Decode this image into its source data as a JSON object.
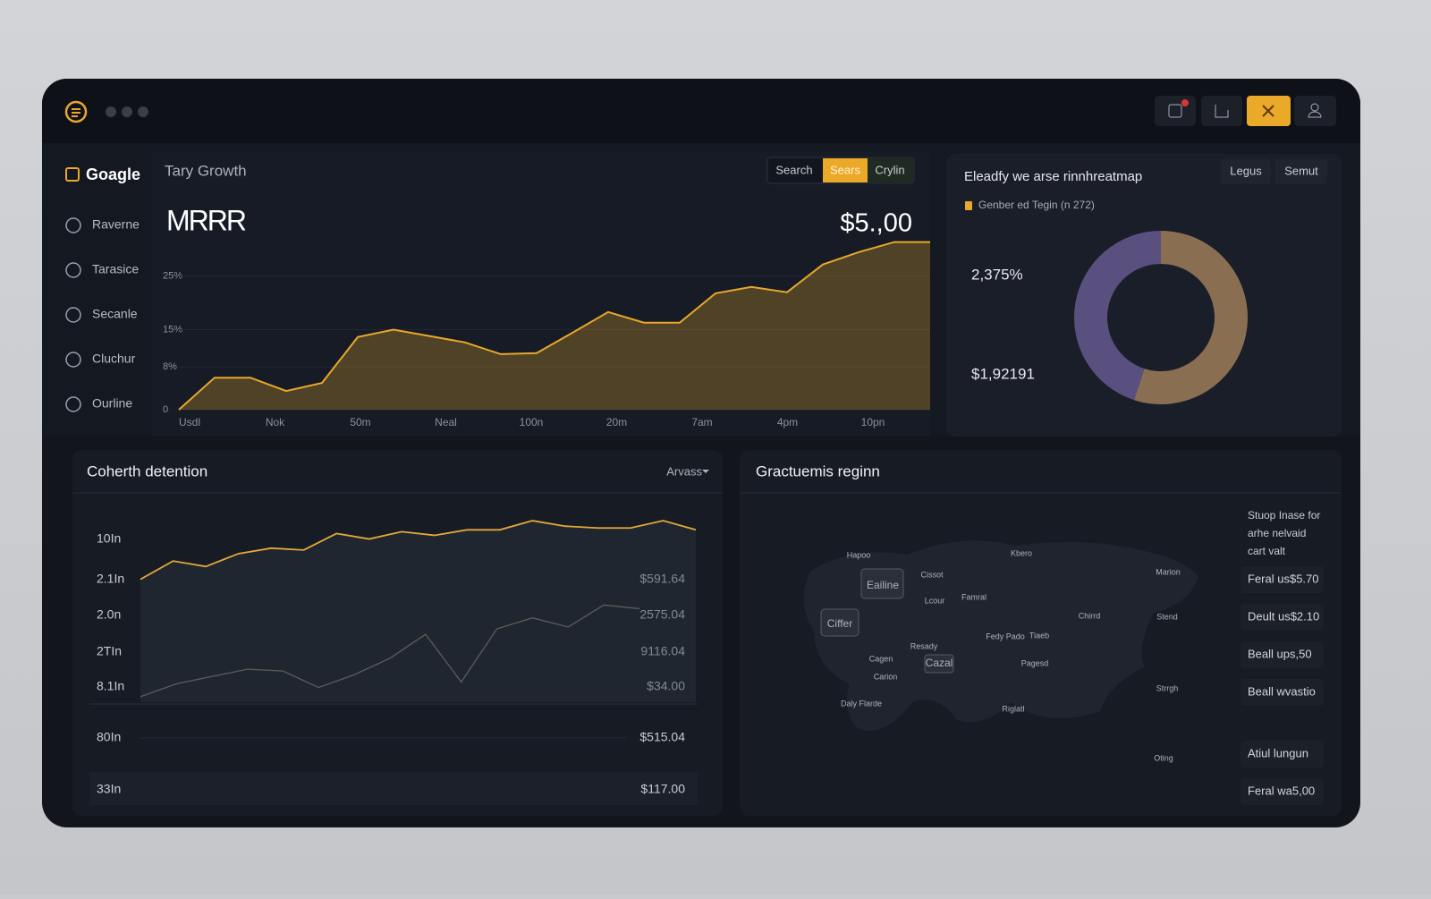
{
  "sidebar": {
    "brand": "Goagle",
    "items": [
      "Raverne",
      "Tarasice",
      "Secanle",
      "Cluchur",
      "Ourline"
    ]
  },
  "growth": {
    "title": "Tary Growth",
    "tabs": [
      "Search",
      "Sears",
      "Crylin"
    ],
    "metric": "MRRR",
    "value": "$5.,00",
    "ylim": [
      0,
      32
    ],
    "yticks": [
      0,
      {
        "value": 8,
        "label": "8%"
      },
      {
        "value": 15,
        "label": "15%"
      },
      {
        "value": 25,
        "label": "25%"
      }
    ],
    "xlabels": [
      "Usdl",
      "Nok",
      "50m",
      "Neal",
      "100n",
      "20m",
      "7am",
      "4pm",
      "10pn"
    ],
    "color": "#e9a82b",
    "values": [
      0,
      6,
      6,
      3.5,
      5,
      13.6,
      15,
      13.8,
      12.6,
      10.4,
      10.6,
      14.4,
      18.3,
      16.3,
      16.3,
      21.8,
      23,
      22,
      27.2,
      29.5,
      31.4,
      31.4
    ]
  },
  "donut": {
    "title": "Eleadfy we arse rinnhreatmap",
    "buttons": [
      "Legus",
      "Semut"
    ],
    "legend": "Genber ed Tegin (n 272)",
    "labels": [
      "2,375%",
      "$1,92191"
    ],
    "values": [
      55,
      45
    ],
    "colors": [
      "#8a6e52",
      "#5a5080"
    ]
  },
  "retention": {
    "title": "Coherth detention",
    "dropdown": "Arvass",
    "row_labels": [
      "10In",
      "2.1In",
      "2.0n",
      "2TIn",
      "8.1In",
      "80In",
      "33In"
    ],
    "value_labels": [
      "$591.64",
      "2575.04",
      "9116.04",
      "$34.00",
      "$515.04",
      "$117.00"
    ],
    "ylim": [
      0,
      100
    ],
    "series": [
      {
        "color": "#e2a93a",
        "values": [
          67,
          77,
          74,
          81,
          84,
          83,
          92,
          89,
          93,
          91,
          94,
          94,
          99,
          96,
          95,
          95,
          99,
          94
        ]
      },
      {
        "color": "#5a5e58",
        "values": [
          3,
          10,
          14,
          18,
          17,
          8,
          15,
          24,
          37,
          11,
          40,
          46,
          41,
          53,
          51
        ]
      }
    ]
  },
  "map": {
    "title": "Gractuemis reginn",
    "places": [
      "Hapoo",
      "Eailine",
      "Cissot",
      "Lcour",
      "Famral",
      "Kbero",
      "Marion",
      "Ciffer",
      "Chirrd",
      "Stend",
      "Resady",
      "Fedy Pado",
      "Tiaeb",
      "Cagen",
      "Cazal",
      "Pagesd",
      "Carion",
      "Strrgh",
      "Daly Flarde",
      "Riglatl",
      "Oting"
    ],
    "note": "Stuop Inase for arhe nelvaid cart valt",
    "legend": [
      "Feral us$5.70",
      "Deult us$2.10",
      "Beall ups,50",
      "Beall wvastio",
      "Atiul lungun",
      "Feral wa5,00"
    ]
  }
}
